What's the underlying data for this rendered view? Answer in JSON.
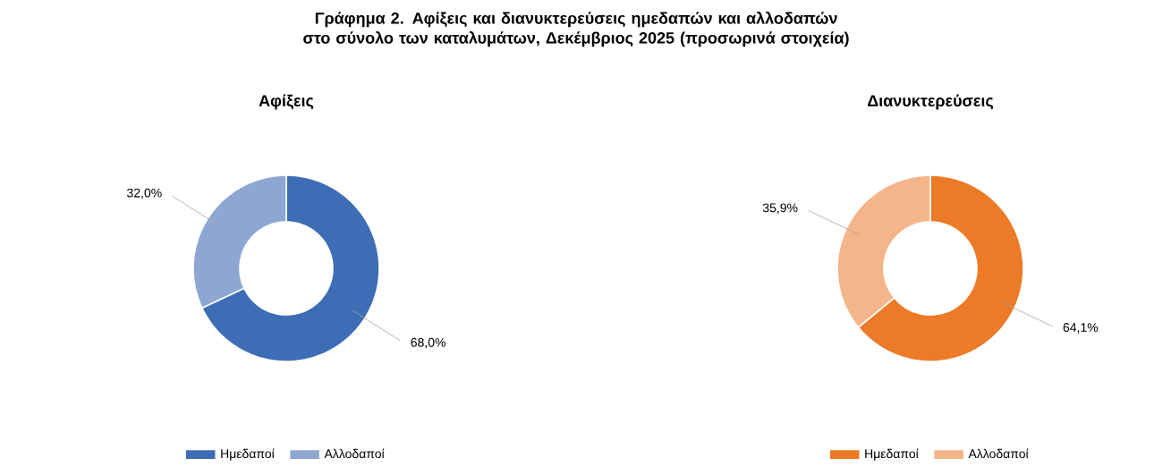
{
  "chart_data": [
    {
      "type": "donut",
      "title": "Αφίξεις",
      "annotations": [
        "Γράφημα 2. Αφίξεις και διανυκτερεύσεις ημεδαπών και αλλοδαπών στο σύνολο των καταλυμάτων, Δεκέμβριος 2025  (προσωρινά στοιχεία)"
      ],
      "categories": [
        "Ημεδαποί",
        "Αλλοδαποί"
      ],
      "values": [
        68.0,
        32.0
      ],
      "value_labels": [
        "68,0%",
        "32,0%"
      ],
      "colors": [
        "#3d6db5",
        "#8ea7d2"
      ],
      "legend": "bottom"
    },
    {
      "type": "donut",
      "title": "Διανυκτερεύσεις",
      "categories": [
        "Ημεδαποί",
        "Αλλοδαποί"
      ],
      "values": [
        64.1,
        35.9
      ],
      "value_labels": [
        "64,1%",
        "35,9%"
      ],
      "colors": [
        "#ec7a26",
        "#f4b58a"
      ],
      "legend": "bottom"
    }
  ]
}
